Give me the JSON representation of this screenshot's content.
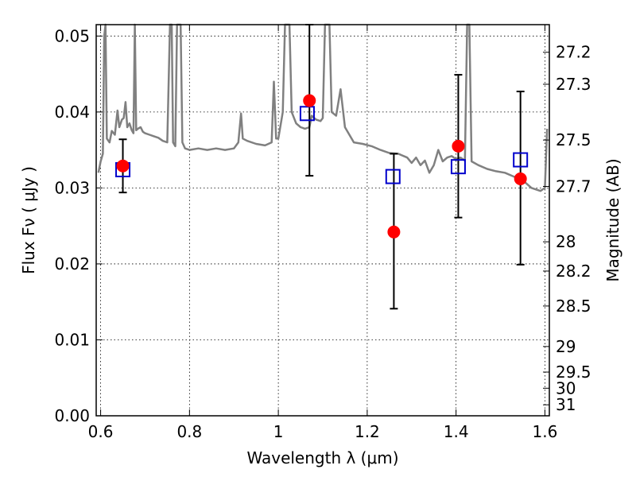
{
  "chart_data": {
    "type": "scatter",
    "xlabel": "Wavelength  λ (μm)",
    "ylabel": "Flux  Fν  ( μJy )",
    "y2label": "Magnitude (AB)",
    "xlim": [
      0.59,
      1.61
    ],
    "ylim": [
      0.0,
      0.0515
    ],
    "grid": true,
    "x_ticks": [
      {
        "value": 0.6,
        "label": "0.6"
      },
      {
        "value": 0.8,
        "label": "0.8"
      },
      {
        "value": 1.0,
        "label": "1"
      },
      {
        "value": 1.2,
        "label": "1.2"
      },
      {
        "value": 1.4,
        "label": "1.4"
      },
      {
        "value": 1.6,
        "label": "1.6"
      }
    ],
    "y_ticks": [
      {
        "value": 0.0,
        "label": "0.00"
      },
      {
        "value": 0.01,
        "label": "0.01"
      },
      {
        "value": 0.02,
        "label": "0.02"
      },
      {
        "value": 0.03,
        "label": "0.03"
      },
      {
        "value": 0.04,
        "label": "0.04"
      },
      {
        "value": 0.05,
        "label": "0.05"
      }
    ],
    "y2_ticks": [
      {
        "value": 27.2,
        "label": "27.2"
      },
      {
        "value": 27.3,
        "label": "27.3"
      },
      {
        "value": 27.5,
        "label": "27.5"
      },
      {
        "value": 27.7,
        "label": "27.7"
      },
      {
        "value": 28,
        "label": "28"
      },
      {
        "value": 28.2,
        "label": "28.2"
      },
      {
        "value": 28.5,
        "label": "28.5"
      },
      {
        "value": 29,
        "label": "29"
      },
      {
        "value": 29.5,
        "label": "29.5"
      },
      {
        "value": 30,
        "label": "30"
      },
      {
        "value": 31,
        "label": "31"
      }
    ],
    "colors": {
      "observed": "#ff0000",
      "model": "#0000cc",
      "template": "#808080",
      "errorbar": "#000000"
    },
    "observed": [
      {
        "x": 0.65,
        "y": 0.0329,
        "err_low": 0.0294,
        "err_high": 0.0364
      },
      {
        "x": 1.07,
        "y": 0.0415,
        "err_low": 0.0316,
        "err_high": 0.0515
      },
      {
        "x": 1.26,
        "y": 0.0242,
        "err_low": 0.0141,
        "err_high": 0.0345
      },
      {
        "x": 1.405,
        "y": 0.0355,
        "err_low": 0.0261,
        "err_high": 0.0449
      },
      {
        "x": 1.545,
        "y": 0.0312,
        "err_low": 0.0199,
        "err_high": 0.0427
      }
    ],
    "model": [
      {
        "x": 0.65,
        "y": 0.0324
      },
      {
        "x": 1.065,
        "y": 0.0398
      },
      {
        "x": 1.258,
        "y": 0.0315
      },
      {
        "x": 1.405,
        "y": 0.0328
      },
      {
        "x": 1.545,
        "y": 0.0337
      }
    ],
    "template": [
      [
        0.595,
        0.032
      ],
      [
        0.6,
        0.0335
      ],
      [
        0.605,
        0.0345
      ],
      [
        0.608,
        0.05
      ],
      [
        0.611,
        0.0515
      ],
      [
        0.614,
        0.0365
      ],
      [
        0.62,
        0.036
      ],
      [
        0.625,
        0.0375
      ],
      [
        0.632,
        0.037
      ],
      [
        0.638,
        0.0402
      ],
      [
        0.642,
        0.038
      ],
      [
        0.648,
        0.039
      ],
      [
        0.652,
        0.0392
      ],
      [
        0.656,
        0.0413
      ],
      [
        0.66,
        0.038
      ],
      [
        0.665,
        0.0385
      ],
      [
        0.67,
        0.0376
      ],
      [
        0.674,
        0.0372
      ],
      [
        0.677,
        0.0515
      ],
      [
        0.68,
        0.0376
      ],
      [
        0.684,
        0.0378
      ],
      [
        0.69,
        0.038
      ],
      [
        0.695,
        0.0374
      ],
      [
        0.7,
        0.0372
      ],
      [
        0.71,
        0.037
      ],
      [
        0.72,
        0.0368
      ],
      [
        0.73,
        0.0366
      ],
      [
        0.74,
        0.0362
      ],
      [
        0.75,
        0.036
      ],
      [
        0.756,
        0.0515
      ],
      [
        0.76,
        0.0515
      ],
      [
        0.763,
        0.036
      ],
      [
        0.768,
        0.0355
      ],
      [
        0.772,
        0.0515
      ],
      [
        0.776,
        0.0515
      ],
      [
        0.78,
        0.0515
      ],
      [
        0.784,
        0.036
      ],
      [
        0.79,
        0.0352
      ],
      [
        0.8,
        0.035
      ],
      [
        0.82,
        0.0352
      ],
      [
        0.84,
        0.035
      ],
      [
        0.86,
        0.0352
      ],
      [
        0.88,
        0.035
      ],
      [
        0.9,
        0.0352
      ],
      [
        0.91,
        0.036
      ],
      [
        0.916,
        0.0398
      ],
      [
        0.92,
        0.0365
      ],
      [
        0.93,
        0.0362
      ],
      [
        0.95,
        0.0358
      ],
      [
        0.97,
        0.0356
      ],
      [
        0.985,
        0.036
      ],
      [
        0.99,
        0.044
      ],
      [
        0.995,
        0.0365
      ],
      [
        1.0,
        0.0365
      ],
      [
        1.01,
        0.04
      ],
      [
        1.015,
        0.0515
      ],
      [
        1.025,
        0.0515
      ],
      [
        1.03,
        0.04
      ],
      [
        1.04,
        0.0385
      ],
      [
        1.05,
        0.038
      ],
      [
        1.06,
        0.0378
      ],
      [
        1.07,
        0.038
      ],
      [
        1.075,
        0.0395
      ],
      [
        1.085,
        0.039
      ],
      [
        1.095,
        0.0388
      ],
      [
        1.1,
        0.0392
      ],
      [
        1.105,
        0.0515
      ],
      [
        1.115,
        0.0515
      ],
      [
        1.12,
        0.04
      ],
      [
        1.13,
        0.0395
      ],
      [
        1.14,
        0.043
      ],
      [
        1.15,
        0.038
      ],
      [
        1.17,
        0.036
      ],
      [
        1.19,
        0.0358
      ],
      [
        1.21,
        0.0355
      ],
      [
        1.23,
        0.035
      ],
      [
        1.25,
        0.0346
      ],
      [
        1.27,
        0.0345
      ],
      [
        1.29,
        0.034
      ],
      [
        1.3,
        0.0333
      ],
      [
        1.31,
        0.034
      ],
      [
        1.32,
        0.033
      ],
      [
        1.33,
        0.0336
      ],
      [
        1.34,
        0.032
      ],
      [
        1.35,
        0.033
      ],
      [
        1.36,
        0.035
      ],
      [
        1.37,
        0.0335
      ],
      [
        1.38,
        0.034
      ],
      [
        1.39,
        0.0342
      ],
      [
        1.4,
        0.0338
      ],
      [
        1.41,
        0.034
      ],
      [
        1.42,
        0.0336
      ],
      [
        1.425,
        0.0515
      ],
      [
        1.43,
        0.0515
      ],
      [
        1.435,
        0.0335
      ],
      [
        1.45,
        0.033
      ],
      [
        1.47,
        0.0325
      ],
      [
        1.49,
        0.0322
      ],
      [
        1.51,
        0.032
      ],
      [
        1.53,
        0.0315
      ],
      [
        1.55,
        0.031
      ],
      [
        1.57,
        0.03
      ],
      [
        1.58,
        0.0298
      ],
      [
        1.59,
        0.0296
      ],
      [
        1.6,
        0.03
      ],
      [
        1.605,
        0.0378
      ]
    ]
  }
}
